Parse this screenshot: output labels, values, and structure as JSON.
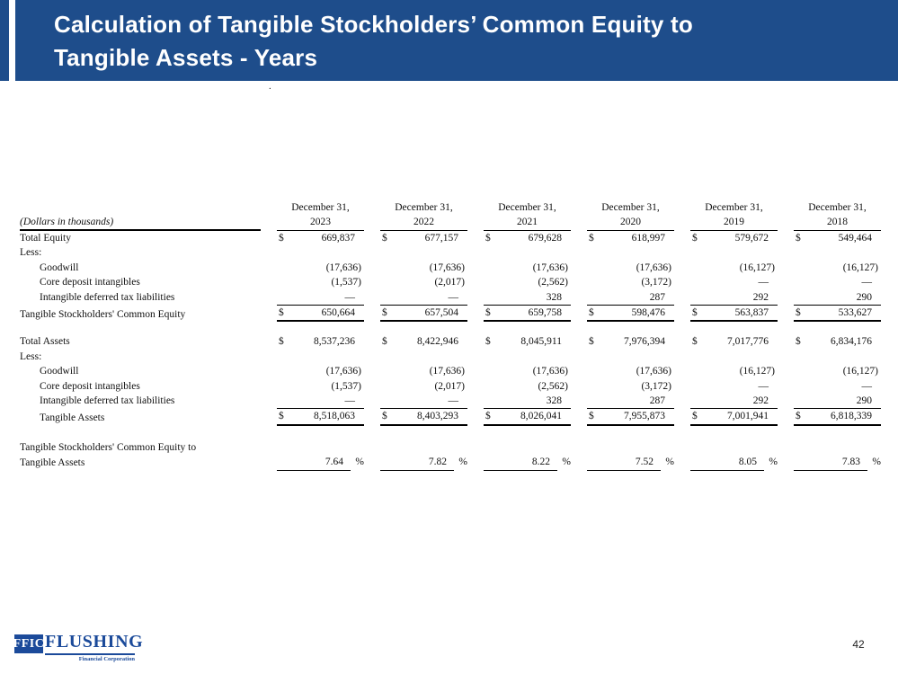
{
  "slide": {
    "title_line1": "Calculation of Tangible Stockholders’ Common Equity to",
    "title_line2": "Tangible Assets - Years",
    "stray_dot": ".",
    "page_number": "42"
  },
  "colors": {
    "header_blue": "#1e4d8b",
    "logo_blue": "#1b4a9a",
    "rule_black": "#000000"
  },
  "logo": {
    "box_text": "FFIC",
    "name": "FLUSHING",
    "subtitle": "Financial Corporation"
  },
  "table": {
    "unit_label": "(Dollars in thousands)",
    "dollar_sign": "$",
    "percent_sign": "%",
    "column_headers": [
      {
        "line1": "December 31,",
        "line2": "2023"
      },
      {
        "line1": "December 31,",
        "line2": "2022"
      },
      {
        "line1": "December 31,",
        "line2": "2021"
      },
      {
        "line1": "December 31,",
        "line2": "2020"
      },
      {
        "line1": "December 31,",
        "line2": "2019"
      },
      {
        "line1": "December 31,",
        "line2": "2018"
      }
    ],
    "sections": [
      {
        "rows": [
          {
            "label": "Total Equity",
            "indent": 0,
            "dollar": true,
            "values": [
              "669,837",
              "677,157",
              "679,628",
              "618,997",
              "579,672",
              "549,464"
            ]
          },
          {
            "label": "Less:",
            "indent": 0,
            "values": null
          },
          {
            "label": "Goodwill",
            "indent": 1,
            "values": [
              "(17,636)",
              "(17,636)",
              "(17,636)",
              "(17,636)",
              "(16,127)",
              "(16,127)"
            ]
          },
          {
            "label": "Core deposit intangibles",
            "indent": 1,
            "values": [
              "(1,537)",
              "(2,017)",
              "(2,562)",
              "(3,172)",
              "—",
              "—"
            ]
          },
          {
            "label": "Intangible deferred tax liabilities",
            "indent": 1,
            "values": [
              "—",
              "—",
              "328",
              "287",
              "292",
              "290"
            ]
          },
          {
            "label": "Tangible Stockholders' Common Equity",
            "indent": 0,
            "dollar": true,
            "style": "total",
            "values": [
              "650,664",
              "657,504",
              "659,758",
              "598,476",
              "563,837",
              "533,627"
            ]
          }
        ]
      },
      {
        "rows": [
          {
            "label": "Total Assets",
            "indent": 0,
            "dollar": true,
            "values": [
              "8,537,236",
              "8,422,946",
              "8,045,911",
              "7,976,394",
              "7,017,776",
              "6,834,176"
            ]
          },
          {
            "label": "Less:",
            "indent": 0,
            "values": null
          },
          {
            "label": "Goodwill",
            "indent": 1,
            "values": [
              "(17,636)",
              "(17,636)",
              "(17,636)",
              "(17,636)",
              "(16,127)",
              "(16,127)"
            ]
          },
          {
            "label": "Core deposit intangibles",
            "indent": 1,
            "values": [
              "(1,537)",
              "(2,017)",
              "(2,562)",
              "(3,172)",
              "—",
              "—"
            ]
          },
          {
            "label": "Intangible deferred tax liabilities",
            "indent": 1,
            "values": [
              "—",
              "—",
              "328",
              "287",
              "292",
              "290"
            ]
          },
          {
            "label": "Tangible Assets",
            "indent": 1,
            "dollar": true,
            "style": "total",
            "values": [
              "8,518,063",
              "8,403,293",
              "8,026,041",
              "7,955,873",
              "7,001,941",
              "6,818,339"
            ]
          }
        ]
      },
      {
        "rows": [
          {
            "label": "Tangible Stockholders' Common Equity to",
            "indent": 0,
            "values": null
          },
          {
            "label": "Tangible Assets",
            "indent": 0,
            "style": "ratio",
            "values": [
              "7.64",
              "7.82",
              "8.22",
              "7.52",
              "8.05",
              "7.83"
            ]
          }
        ]
      }
    ]
  }
}
